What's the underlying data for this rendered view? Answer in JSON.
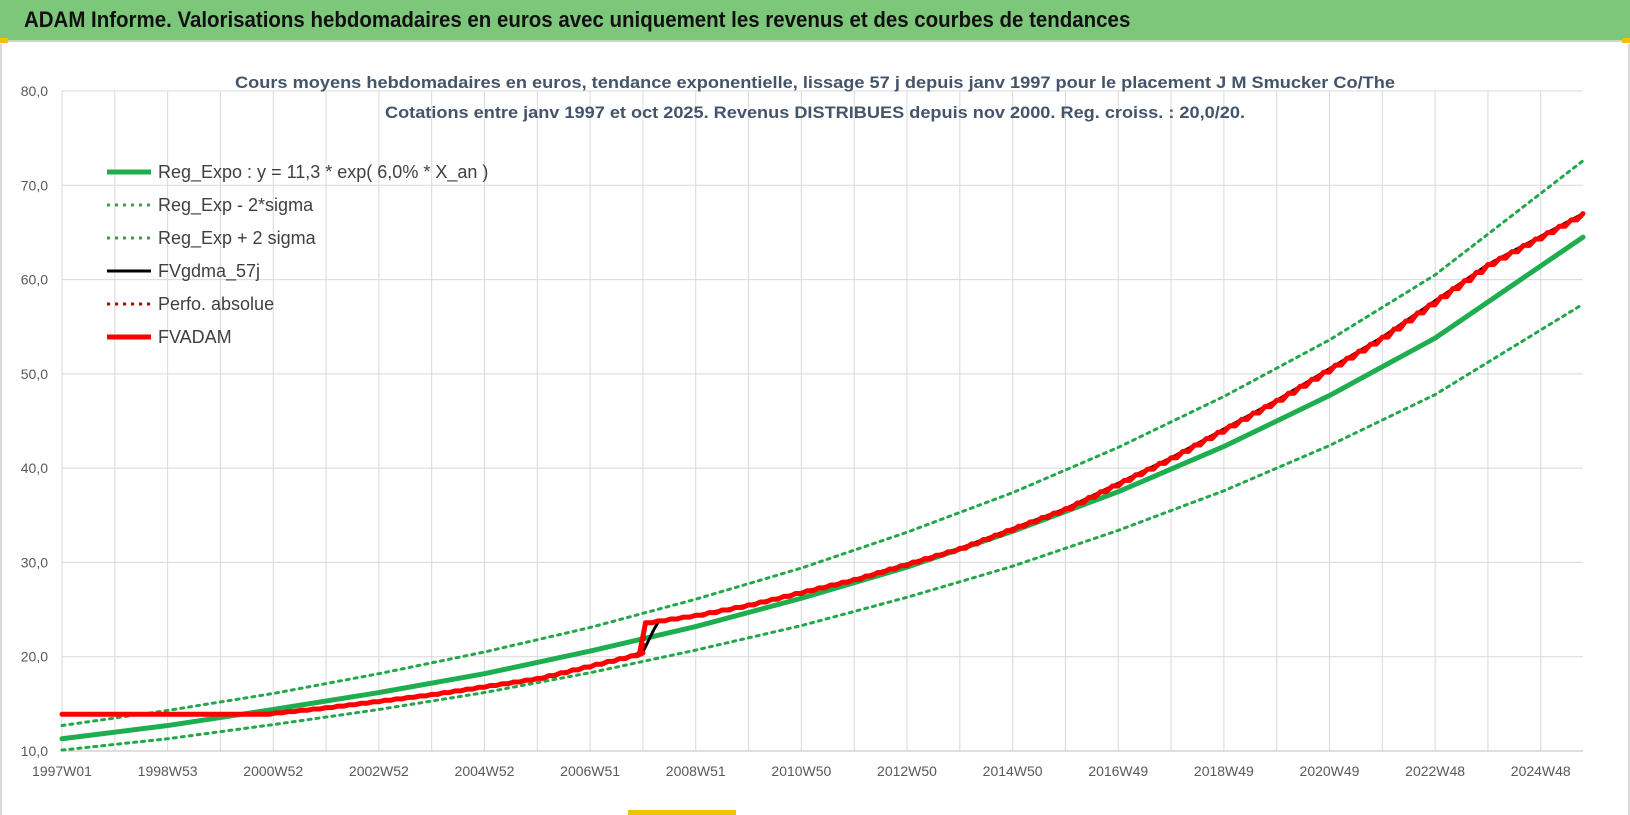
{
  "header": {
    "title": "ADAM Informe. Valorisations hebdomadaires en euros avec uniquement les revenus et des courbes de tendances"
  },
  "colors": {
    "header_bg": "#7dc77a",
    "trend_green": "#1fae4f",
    "band_green": "#22a84a",
    "fvgdma_black": "#000000",
    "adam_red": "#ff0000",
    "perfo_red": "#c00000",
    "grid": "#d9d9d9"
  },
  "chart_data": {
    "type": "line",
    "title_lines": [
      "Cours moyens hebdomadaires en euros, tendance exponentielle, lissage 57 j depuis janv 1997 pour le placement J M Smucker Co/The",
      "Cotations entre janv 1997 et oct 2025. Revenus DISTRIBUES depuis nov 2000. Reg. croiss. : 20,0/20."
    ],
    "x_tick_labels": [
      "1997W01",
      "1998W53",
      "2000W52",
      "2002W52",
      "2004W52",
      "2006W51",
      "2008W51",
      "2010W50",
      "2012W50",
      "2014W50",
      "2016W49",
      "2018W49",
      "2020W49",
      "2022W48",
      "2024W48"
    ],
    "x_range": [
      1997.0,
      2025.8
    ],
    "ylim": [
      10,
      80
    ],
    "y_ticks": [
      10,
      20,
      30,
      40,
      50,
      60,
      70,
      80
    ],
    "y_tick_labels": [
      "10,0",
      "20,0",
      "30,0",
      "40,0",
      "50,0",
      "60,0",
      "70,0",
      "80,0"
    ],
    "grid": true,
    "legend_position": "top-left",
    "series": [
      {
        "name": "Reg_Expo : y = 11,3 * exp( 6,0% *  X_an )",
        "style": "solid-thick",
        "color": "#1fae4f",
        "x": [
          1997.0,
          1999.0,
          2001.0,
          2003.0,
          2005.0,
          2007.0,
          2009.0,
          2011.0,
          2013.0,
          2015.0,
          2017.0,
          2019.0,
          2021.0,
          2023.0,
          2025.8
        ],
        "y": [
          11.3,
          12.7,
          14.4,
          16.2,
          18.2,
          20.6,
          23.2,
          26.2,
          29.5,
          33.3,
          37.5,
          42.3,
          47.7,
          53.8,
          64.5
        ]
      },
      {
        "name": "Reg_Exp - 2*sigma",
        "style": "dotted",
        "color": "#22a84a",
        "x": [
          1997.0,
          1999.0,
          2001.0,
          2003.0,
          2005.0,
          2007.0,
          2009.0,
          2011.0,
          2013.0,
          2015.0,
          2017.0,
          2019.0,
          2021.0,
          2023.0,
          2025.8
        ],
        "y": [
          10.1,
          11.3,
          12.8,
          14.4,
          16.2,
          18.3,
          20.7,
          23.3,
          26.3,
          29.6,
          33.4,
          37.6,
          42.4,
          47.8,
          57.4
        ]
      },
      {
        "name": "Reg_Exp + 2 sigma",
        "style": "dotted",
        "color": "#22a84a",
        "x": [
          1997.0,
          1999.0,
          2001.0,
          2003.0,
          2005.0,
          2007.0,
          2009.0,
          2011.0,
          2013.0,
          2015.0,
          2017.0,
          2019.0,
          2021.0,
          2023.0,
          2025.8
        ],
        "y": [
          12.7,
          14.3,
          16.1,
          18.2,
          20.5,
          23.1,
          26.1,
          29.4,
          33.2,
          37.4,
          42.2,
          47.6,
          53.6,
          60.5,
          72.6
        ]
      },
      {
        "name": "FVgdma_57j",
        "style": "solid",
        "color": "#000000",
        "x": [
          1997.0,
          2000.8,
          2002.0,
          2004.0,
          2006.0,
          2007.6,
          2008.0,
          2008.2,
          2008.3,
          2009.0,
          2010.0,
          2012.0,
          2014.0,
          2016.0,
          2018.0,
          2020.0,
          2022.0,
          2024.0,
          2025.8
        ],
        "y": [
          13.9,
          13.9,
          14.6,
          16.0,
          17.7,
          19.8,
          20.5,
          22.8,
          23.8,
          24.4,
          25.5,
          28.2,
          31.5,
          35.7,
          41.1,
          47.2,
          53.9,
          61.6,
          67.0
        ]
      },
      {
        "name": "Perfo. absolue",
        "style": "dotted",
        "color": "#c00000",
        "x": [
          1997.0,
          2000.8,
          2002.0,
          2004.0,
          2006.0,
          2008.0,
          2008.05,
          2009.0,
          2010.0,
          2012.0,
          2014.0,
          2016.0,
          2018.0,
          2020.0,
          2022.0,
          2024.0,
          2025.8
        ],
        "y": [
          13.9,
          13.9,
          14.6,
          16.0,
          17.7,
          20.4,
          23.6,
          24.4,
          25.5,
          28.2,
          31.5,
          35.7,
          41.1,
          47.2,
          53.9,
          61.6,
          67.0
        ]
      },
      {
        "name": "FVADAM",
        "style": "solid-thick",
        "color": "#ff0000",
        "x": [
          1997.0,
          2000.8,
          2002.0,
          2004.0,
          2006.0,
          2008.0,
          2008.05,
          2009.0,
          2010.0,
          2012.0,
          2014.0,
          2016.0,
          2018.0,
          2020.0,
          2022.0,
          2024.0,
          2025.8
        ],
        "y": [
          13.9,
          13.9,
          14.6,
          16.0,
          17.7,
          20.4,
          23.6,
          24.4,
          25.5,
          28.2,
          31.5,
          35.7,
          41.1,
          47.2,
          53.9,
          61.6,
          67.0
        ]
      }
    ]
  }
}
